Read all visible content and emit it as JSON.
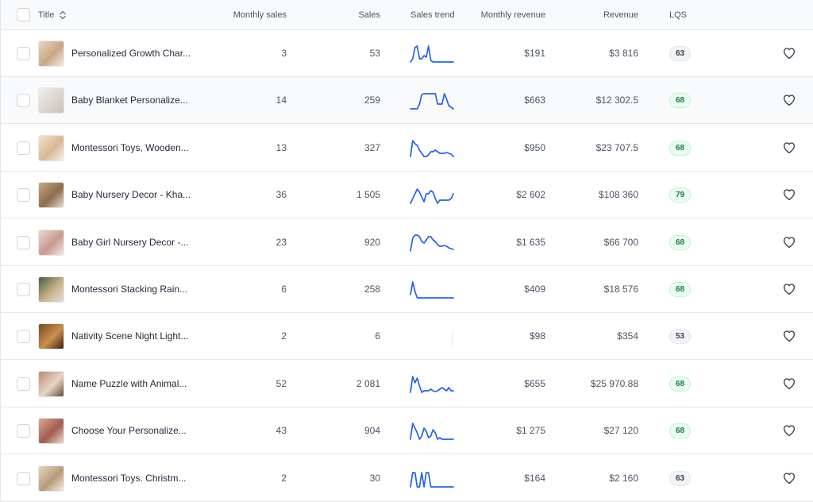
{
  "header": {
    "title": "Title",
    "monthly_sales": "Monthly sales",
    "sales": "Sales",
    "sales_trend": "Sales trend",
    "monthly_revenue": "Monthly revenue",
    "revenue": "Revenue",
    "lqs": "LQS"
  },
  "colors": {
    "trend_line": "#2563eb",
    "lqs_green": "#15803d",
    "lqs_gray": "#374151"
  },
  "rows": [
    {
      "title": "Personalized Growth Char...",
      "monthly_sales": "3",
      "sales": "53",
      "monthly_revenue": "$191",
      "revenue": "$3 816",
      "lqs": "63",
      "lqs_tone": "gray",
      "trend": [
        0,
        0.2,
        0.9,
        1,
        0.2,
        0.2,
        0.4,
        0.3,
        1,
        0.1,
        0,
        0,
        0,
        0,
        0,
        0,
        0,
        0,
        0,
        0
      ],
      "thumb": [
        "#e8d7c6",
        "#c9a787",
        "#f4ece4"
      ]
    },
    {
      "title": "Baby Blanket Personalize...",
      "monthly_sales": "14",
      "sales": "259",
      "monthly_revenue": "$663",
      "revenue": "$12 302.5",
      "lqs": "68",
      "lqs_tone": "green",
      "trend": [
        0,
        0,
        0,
        0,
        0.3,
        0.9,
        0.95,
        0.95,
        0.95,
        0.95,
        0.95,
        0.95,
        0.3,
        0.3,
        0.3,
        0.95,
        0.6,
        0.2,
        0.1,
        0
      ],
      "thumb": [
        "#f1efec",
        "#dcd6cf",
        "#c9c2ba"
      ]
    },
    {
      "title": "Montessori Toys, Wooden...",
      "monthly_sales": "13",
      "sales": "327",
      "monthly_revenue": "$950",
      "revenue": "$23 707.5",
      "lqs": "68",
      "lqs_tone": "green",
      "trend": [
        0,
        1,
        0.8,
        0.7,
        0.4,
        0.2,
        0,
        0,
        0.1,
        0.3,
        0.3,
        0.4,
        0.3,
        0.2,
        0.2,
        0.2,
        0.25,
        0.2,
        0.15,
        0
      ],
      "thumb": [
        "#f3e4d0",
        "#d8b896",
        "#fbf3e8"
      ]
    },
    {
      "title": "Baby Nursery Decor - Kha...",
      "monthly_sales": "36",
      "sales": "1 505",
      "monthly_revenue": "$2 602",
      "revenue": "$108 360",
      "lqs": "79",
      "lqs_tone": "green",
      "trend": [
        0,
        0.3,
        0.6,
        0.9,
        0.7,
        0.4,
        0.1,
        0.6,
        0.6,
        0.8,
        0.7,
        0.3,
        0,
        0.2,
        0.2,
        0.2,
        0.2,
        0.2,
        0.3,
        0.6
      ],
      "thumb": [
        "#caa986",
        "#8c6c4e",
        "#e9dccb"
      ]
    },
    {
      "title": "Baby Girl Nursery Decor -...",
      "monthly_sales": "23",
      "sales": "920",
      "monthly_revenue": "$1 635",
      "revenue": "$66 700",
      "lqs": "68",
      "lqs_tone": "green",
      "trend": [
        0,
        0.8,
        1,
        1,
        0.9,
        0.6,
        0.5,
        0.7,
        0.9,
        0.9,
        0.7,
        0.6,
        0.4,
        0.3,
        0.3,
        0.35,
        0.3,
        0.2,
        0.15,
        0.1
      ],
      "thumb": [
        "#ead7cf",
        "#c99a91",
        "#f5ebe6"
      ]
    },
    {
      "title": "Montessori Stacking Rain...",
      "monthly_sales": "6",
      "sales": "258",
      "monthly_revenue": "$409",
      "revenue": "$18 576",
      "lqs": "68",
      "lqs_tone": "green",
      "trend": [
        0.2,
        1,
        0.4,
        0,
        0,
        0,
        0,
        0,
        0,
        0,
        0,
        0,
        0,
        0,
        0,
        0,
        0,
        0,
        0,
        0
      ],
      "thumb": [
        "#4a5c3f",
        "#c9b28a",
        "#e6dfd3"
      ]
    },
    {
      "title": "Nativity Scene Night Light...",
      "monthly_sales": "2",
      "sales": "6",
      "monthly_revenue": "$98",
      "revenue": "$354",
      "lqs": "53",
      "lqs_tone": "gray",
      "trend": [],
      "thumb": [
        "#7a4a22",
        "#c98f4c",
        "#3b2412"
      ]
    },
    {
      "title": "Name Puzzle with Animal...",
      "monthly_sales": "52",
      "sales": "2 081",
      "monthly_revenue": "$655",
      "revenue": "$25 970.88",
      "lqs": "68",
      "lqs_tone": "green",
      "trend": [
        0,
        1,
        0.6,
        0.9,
        0.4,
        0,
        0.1,
        0.1,
        0.1,
        0.2,
        0.1,
        0.05,
        0.1,
        0.2,
        0.3,
        0.2,
        0.1,
        0.3,
        0.1,
        0.1
      ],
      "thumb": [
        "#b98a6e",
        "#e8d6c6",
        "#6b4b3a"
      ]
    },
    {
      "title": "Choose Your Personalize...",
      "monthly_sales": "43",
      "sales": "904",
      "monthly_revenue": "$1 275",
      "revenue": "$27 120",
      "lqs": "68",
      "lqs_tone": "green",
      "trend": [
        0,
        1,
        0.7,
        0.4,
        0,
        0.2,
        0.7,
        0.5,
        0.1,
        0.2,
        0.6,
        0.4,
        0,
        0.1,
        0,
        0,
        0,
        0,
        0,
        0
      ],
      "thumb": [
        "#d9a893",
        "#a05d4f",
        "#f2dcd2"
      ]
    },
    {
      "title": "Montessori Toys. Christm...",
      "monthly_sales": "2",
      "sales": "30",
      "monthly_revenue": "$164",
      "revenue": "$2 160",
      "lqs": "63",
      "lqs_tone": "gray",
      "trend": [
        0,
        0.9,
        0.9,
        0,
        0,
        0.9,
        0,
        0.9,
        0.9,
        0,
        0,
        0,
        0,
        0,
        0,
        0,
        0,
        0,
        0,
        0
      ],
      "thumb": [
        "#e6d5bf",
        "#b79b79",
        "#f6eee3"
      ]
    }
  ]
}
